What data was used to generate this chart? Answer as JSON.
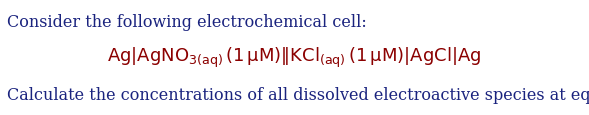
{
  "background_color": "#ffffff",
  "line1_text": "Consider the following electrochemical cell:",
  "text_color": "#1a237e",
  "line1_fontsize": 11.5,
  "line3_text": "Calculate the concentrations of all dissolved electroactive species at equilibrium.",
  "line3_fontsize": 11.5,
  "cell_color": "#8b0000",
  "cell_fontsize": 13.0,
  "fig_width": 5.89,
  "fig_height": 1.16,
  "dpi": 100
}
